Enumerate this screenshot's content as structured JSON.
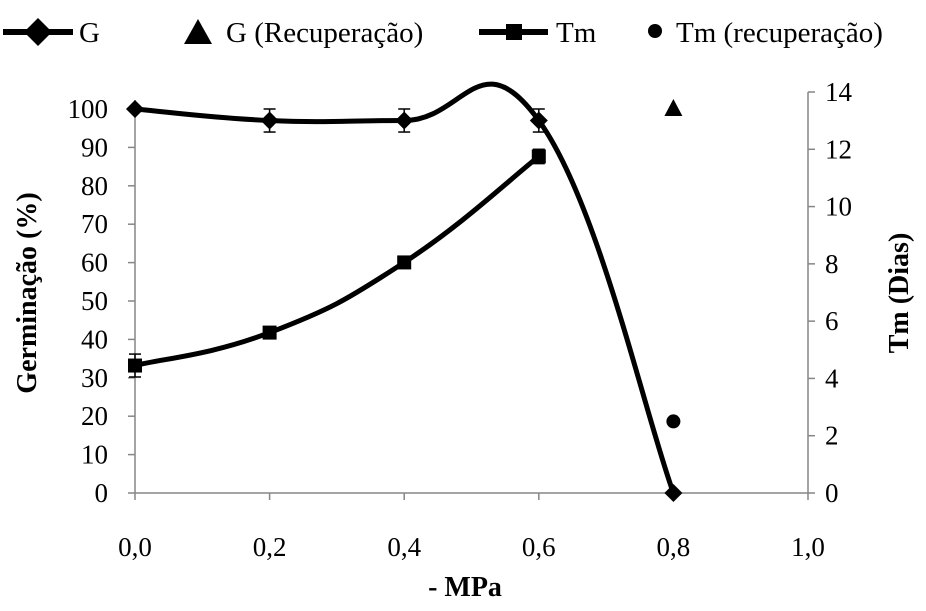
{
  "chart_data": {
    "type": "line",
    "xlabel": "- MPa",
    "ylabel_left": "Germinação (%)",
    "ylabel_right": "Tm (Dias)",
    "x_ticks": [
      "0,0",
      "0,2",
      "0,4",
      "0,6",
      "0,8",
      "1,0"
    ],
    "y_left_ticks": [
      "0",
      "10",
      "20",
      "30",
      "40",
      "50",
      "60",
      "70",
      "80",
      "90",
      "100"
    ],
    "y_right_ticks": [
      "0",
      "2",
      "4",
      "6",
      "8",
      "10",
      "12",
      "14"
    ],
    "xlim": [
      0,
      1.0
    ],
    "ylim_left": [
      0,
      105
    ],
    "ylim_right": [
      0,
      14
    ],
    "grid": false,
    "legend_position": "top",
    "series": [
      {
        "name": "G",
        "axis": "left",
        "marker": "diamond",
        "smooth_line": true,
        "x": [
          0.0,
          0.2,
          0.4,
          0.6,
          0.8
        ],
        "y": [
          100,
          97,
          97,
          97,
          0
        ],
        "error": [
          0,
          3,
          3,
          3,
          0
        ]
      },
      {
        "name": "G (Recuperação)",
        "axis": "left",
        "marker": "triangle",
        "smooth_line": false,
        "x": [
          0.8
        ],
        "y": [
          100
        ],
        "error": [
          0
        ]
      },
      {
        "name": "Tm",
        "axis": "right",
        "marker": "square",
        "smooth_line": true,
        "x": [
          0.0,
          0.2,
          0.4,
          0.6
        ],
        "y": [
          4.45,
          5.6,
          8.05,
          11.75
        ],
        "error": [
          0.4,
          0,
          0,
          0.25
        ]
      },
      {
        "name": "Tm (recuperação)",
        "axis": "right",
        "marker": "circle",
        "smooth_line": false,
        "x": [
          0.8
        ],
        "y": [
          2.5
        ],
        "error": [
          0
        ]
      }
    ],
    "colors": {
      "line": "#000000",
      "axis": "#868686"
    }
  }
}
